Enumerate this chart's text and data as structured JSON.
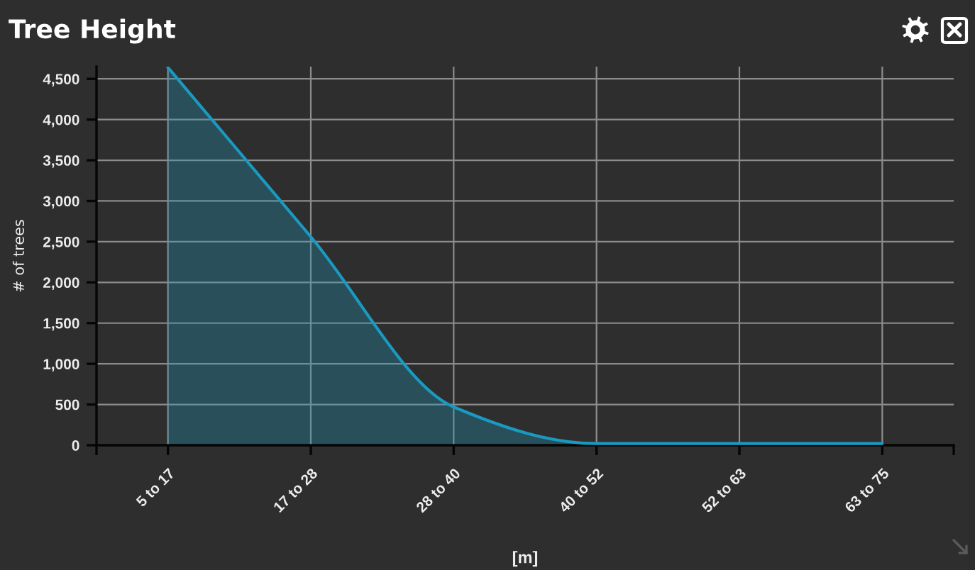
{
  "chart_data": {
    "type": "area",
    "title": "Tree Height",
    "xlabel": "[m]",
    "ylabel": "# of trees",
    "categories": [
      "5 to 17",
      "17 to 28",
      "28 to 40",
      "40 to 52",
      "52 to 63",
      "63 to 75"
    ],
    "series": [
      {
        "color": "#1a9ac0",
        "values": [
          4640,
          2560,
          470,
          20,
          20,
          20
        ]
      }
    ],
    "ylim": [
      0,
      4650
    ],
    "yticks": [
      0,
      500,
      {
        "value": 1000,
        "label": "1,000"
      },
      {
        "value": 1500,
        "label": "1,500"
      },
      {
        "value": 2000,
        "label": "2,000"
      },
      {
        "value": 2500,
        "label": "2,500"
      },
      {
        "value": 3000,
        "label": "3,000"
      },
      {
        "value": 3500,
        "label": "3,500"
      },
      {
        "value": 4000,
        "label": "4,000"
      },
      {
        "value": 4500,
        "label": "4,500"
      }
    ],
    "grid": true
  }
}
